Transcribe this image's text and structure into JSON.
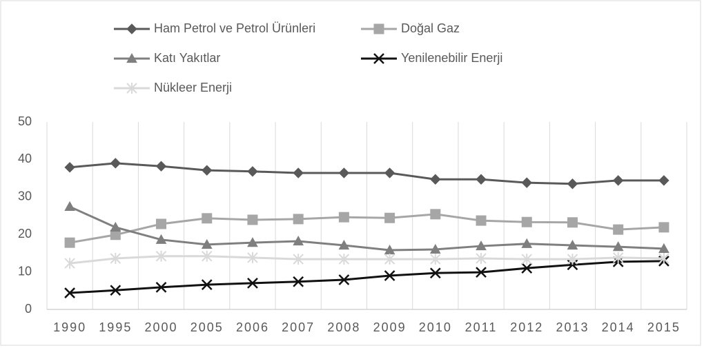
{
  "chart_data": {
    "type": "line",
    "categories": [
      "1990",
      "1995",
      "2000",
      "2005",
      "2006",
      "2007",
      "2008",
      "2009",
      "2010",
      "2011",
      "2012",
      "2013",
      "2014",
      "2015"
    ],
    "series": [
      {
        "name": "Ham Petrol ve Petrol Ürünleri",
        "color": "#595959",
        "marker": "diamond",
        "values": [
          37.9,
          39.0,
          38.2,
          37.1,
          36.8,
          36.4,
          36.4,
          36.4,
          34.7,
          34.7,
          33.8,
          33.5,
          34.4,
          34.4
        ]
      },
      {
        "name": "Doğal Gaz",
        "color": "#a6a6a6",
        "marker": "square",
        "values": [
          17.8,
          19.9,
          22.8,
          24.3,
          23.9,
          24.1,
          24.6,
          24.4,
          25.4,
          23.7,
          23.3,
          23.2,
          21.3,
          21.9
        ]
      },
      {
        "name": "Katı Yakıtlar",
        "color": "#7f7f7f",
        "marker": "triangle",
        "values": [
          27.4,
          21.9,
          18.6,
          17.3,
          17.8,
          18.2,
          17.1,
          15.8,
          16.0,
          16.9,
          17.5,
          17.1,
          16.7,
          16.2
        ]
      },
      {
        "name": "Yenilenebilir Enerji",
        "color": "#111111",
        "marker": "x",
        "values": [
          4.4,
          5.1,
          5.9,
          6.6,
          7.0,
          7.4,
          7.9,
          9.0,
          9.7,
          9.9,
          11.0,
          11.9,
          12.7,
          12.9
        ]
      },
      {
        "name": "Nükleer Enerji",
        "color": "#d9d9d9",
        "marker": "star",
        "values": [
          12.3,
          13.6,
          14.2,
          14.2,
          13.8,
          13.4,
          13.4,
          13.4,
          13.4,
          13.6,
          13.4,
          13.4,
          13.8,
          13.6
        ]
      }
    ],
    "ylim": [
      0,
      50
    ],
    "yticks": [
      0,
      10,
      20,
      30,
      40,
      50
    ],
    "grid": true,
    "legend": "top"
  }
}
